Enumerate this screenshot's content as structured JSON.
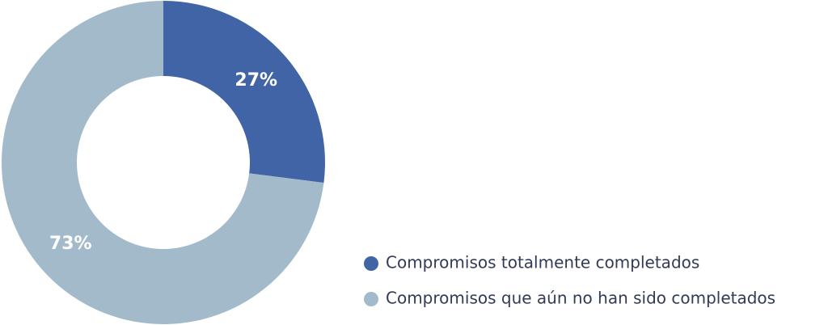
{
  "chart_data": {
    "type": "pie",
    "hole": true,
    "categories": [
      "Compromisos totalmente completados",
      "Compromisos que aún no han sido completados"
    ],
    "values": [
      27,
      73
    ],
    "value_labels": [
      "27%",
      "73%"
    ],
    "colors": [
      "#4164a6",
      "#a3bacb"
    ]
  }
}
